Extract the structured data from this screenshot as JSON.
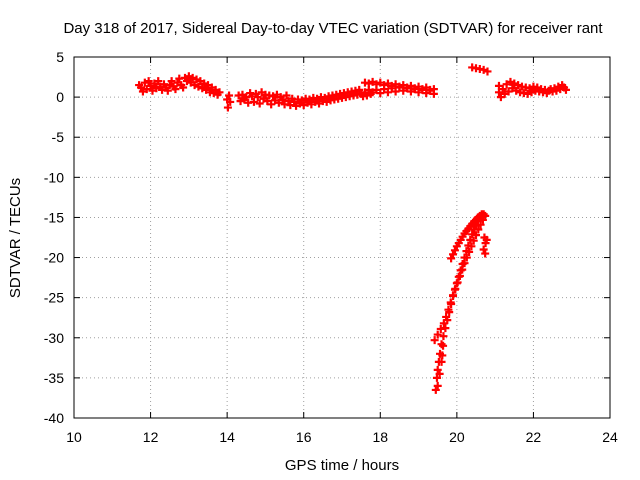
{
  "chart_data": {
    "type": "scatter",
    "title": "Day 318 of 2017, Sidereal Day-to-day VTEC variation (SDTVAR) for receiver rant",
    "xlabel": "GPS time / hours",
    "ylabel": "SDTVAR / TECUs",
    "xlim": [
      10,
      24
    ],
    "ylim": [
      -40,
      5
    ],
    "xticks": [
      10,
      12,
      14,
      16,
      18,
      20,
      22,
      24
    ],
    "yticks": [
      5,
      0,
      -5,
      -10,
      -15,
      -20,
      -25,
      -30,
      -35,
      -40
    ],
    "grid": true,
    "marker": "+",
    "point_color": "#ff0000",
    "series": [
      {
        "points": [
          [
            11.7,
            1.5
          ],
          [
            11.75,
            1.2
          ],
          [
            11.8,
            0.7
          ],
          [
            11.85,
            1.8
          ],
          [
            11.9,
            1.0
          ],
          [
            11.95,
            2.0
          ],
          [
            12.0,
            1.4
          ],
          [
            12.05,
            0.8
          ],
          [
            12.1,
            1.7
          ],
          [
            12.15,
            1.1
          ],
          [
            12.2,
            2.0
          ],
          [
            12.25,
            1.3
          ],
          [
            12.3,
            0.9
          ],
          [
            12.35,
            1.6
          ],
          [
            12.4,
            1.2
          ],
          [
            12.45,
            0.8
          ],
          [
            12.5,
            1.5
          ],
          [
            12.55,
            2.0
          ],
          [
            12.6,
            1.3
          ],
          [
            12.65,
            1.0
          ],
          [
            12.7,
            1.8
          ],
          [
            12.75,
            2.3
          ],
          [
            12.8,
            1.5
          ],
          [
            12.85,
            1.2
          ],
          [
            12.9,
            2.4
          ],
          [
            12.95,
            2.0
          ],
          [
            13.0,
            2.6
          ],
          [
            13.05,
            1.8
          ],
          [
            13.1,
            2.4
          ],
          [
            13.15,
            1.5
          ],
          [
            13.2,
            2.2
          ],
          [
            13.25,
            1.3
          ],
          [
            13.3,
            2.0
          ],
          [
            13.35,
            1.1
          ],
          [
            13.4,
            1.7
          ],
          [
            13.45,
            0.9
          ],
          [
            13.5,
            1.5
          ],
          [
            13.55,
            0.6
          ],
          [
            13.6,
            1.2
          ],
          [
            13.65,
            0.5
          ],
          [
            13.7,
            0.9
          ],
          [
            13.75,
            0.3
          ],
          [
            13.8,
            0.6
          ],
          [
            14.0,
            -0.3
          ],
          [
            14.02,
            -1.3
          ],
          [
            14.05,
            0.2
          ],
          [
            14.08,
            -0.6
          ],
          [
            14.3,
            0.2
          ],
          [
            14.35,
            -0.5
          ],
          [
            14.4,
            0.3
          ],
          [
            14.45,
            -0.3
          ],
          [
            14.5,
            0.0
          ],
          [
            14.55,
            -0.7
          ],
          [
            14.6,
            0.5
          ],
          [
            14.65,
            0.1
          ],
          [
            14.7,
            -0.6
          ],
          [
            14.75,
            0.4
          ],
          [
            14.8,
            0.0
          ],
          [
            14.85,
            -0.8
          ],
          [
            14.9,
            0.6
          ],
          [
            14.95,
            -0.2
          ],
          [
            15.0,
            0.3
          ],
          [
            15.05,
            -0.5
          ],
          [
            15.1,
            0.2
          ],
          [
            15.15,
            -0.9
          ],
          [
            15.2,
            0.1
          ],
          [
            15.25,
            -0.4
          ],
          [
            15.3,
            0.3
          ],
          [
            15.35,
            -0.7
          ],
          [
            15.4,
            0.0
          ],
          [
            15.45,
            -0.3
          ],
          [
            15.5,
            -0.9
          ],
          [
            15.55,
            0.2
          ],
          [
            15.6,
            -0.5
          ],
          [
            15.65,
            -1.0
          ],
          [
            15.7,
            -0.2
          ],
          [
            15.75,
            -0.6
          ],
          [
            15.8,
            -1.1
          ],
          [
            15.85,
            -0.3
          ],
          [
            15.9,
            -0.8
          ],
          [
            15.95,
            -0.4
          ],
          [
            16.0,
            -1.0
          ],
          [
            16.05,
            -0.2
          ],
          [
            16.1,
            -0.7
          ],
          [
            16.15,
            -0.3
          ],
          [
            16.2,
            -0.9
          ],
          [
            16.25,
            -0.1
          ],
          [
            16.3,
            -0.6
          ],
          [
            16.35,
            -0.2
          ],
          [
            16.4,
            -0.8
          ],
          [
            16.45,
            0.0
          ],
          [
            16.5,
            -0.5
          ],
          [
            16.55,
            -0.1
          ],
          [
            16.6,
            -0.6
          ],
          [
            16.65,
            0.1
          ],
          [
            16.7,
            -0.4
          ],
          [
            16.75,
            0.2
          ],
          [
            16.8,
            -0.3
          ],
          [
            16.85,
            0.3
          ],
          [
            16.9,
            -0.2
          ],
          [
            16.95,
            0.4
          ],
          [
            17.0,
            -0.1
          ],
          [
            17.05,
            0.5
          ],
          [
            17.1,
            0.0
          ],
          [
            17.15,
            0.6
          ],
          [
            17.2,
            0.1
          ],
          [
            17.25,
            0.7
          ],
          [
            17.3,
            0.2
          ],
          [
            17.35,
            0.8
          ],
          [
            17.4,
            0.3
          ],
          [
            17.45,
            0.9
          ],
          [
            17.5,
            0.4
          ],
          [
            17.55,
            0.1
          ],
          [
            17.6,
            0.6
          ],
          [
            17.65,
            0.2
          ],
          [
            17.7,
            0.9
          ],
          [
            17.75,
            0.4
          ],
          [
            17.6,
            1.8
          ],
          [
            17.7,
            1.7
          ],
          [
            17.8,
            1.9
          ],
          [
            17.9,
            1.6
          ],
          [
            18.0,
            1.8
          ],
          [
            18.1,
            1.5
          ],
          [
            18.2,
            1.7
          ],
          [
            18.3,
            1.4
          ],
          [
            18.4,
            1.6
          ],
          [
            18.5,
            1.3
          ],
          [
            18.6,
            1.5
          ],
          [
            18.7,
            1.2
          ],
          [
            18.8,
            1.4
          ],
          [
            18.9,
            1.1
          ],
          [
            19.0,
            1.3
          ],
          [
            19.1,
            1.0
          ],
          [
            19.2,
            1.2
          ],
          [
            19.3,
            0.9
          ],
          [
            19.4,
            1.0
          ],
          [
            17.8,
            0.6
          ],
          [
            17.9,
            0.9
          ],
          [
            18.0,
            0.5
          ],
          [
            18.1,
            1.0
          ],
          [
            18.2,
            0.6
          ],
          [
            18.3,
            1.1
          ],
          [
            18.4,
            0.7
          ],
          [
            18.5,
            1.2
          ],
          [
            18.6,
            0.8
          ],
          [
            18.7,
            1.1
          ],
          [
            18.8,
            0.7
          ],
          [
            18.9,
            1.0
          ],
          [
            19.0,
            0.6
          ],
          [
            19.1,
            0.9
          ],
          [
            19.2,
            0.5
          ],
          [
            19.3,
            0.8
          ],
          [
            19.4,
            0.4
          ],
          [
            20.4,
            3.7
          ],
          [
            20.5,
            3.6
          ],
          [
            20.6,
            3.5
          ],
          [
            20.7,
            3.4
          ],
          [
            20.8,
            3.2
          ],
          [
            21.1,
            1.4
          ],
          [
            21.1,
            0.6
          ],
          [
            21.15,
            0.0
          ],
          [
            21.2,
            1.0
          ],
          [
            21.25,
            0.4
          ],
          [
            21.3,
            1.6
          ],
          [
            21.35,
            0.7
          ],
          [
            21.4,
            1.9
          ],
          [
            21.45,
            1.1
          ],
          [
            21.5,
            1.7
          ],
          [
            21.55,
            0.8
          ],
          [
            21.6,
            1.5
          ],
          [
            21.65,
            0.6
          ],
          [
            21.7,
            1.3
          ],
          [
            21.75,
            0.5
          ],
          [
            21.8,
            1.2
          ],
          [
            21.85,
            0.4
          ],
          [
            21.9,
            1.1
          ],
          [
            21.95,
            0.6
          ],
          [
            22.0,
            1.3
          ],
          [
            22.05,
            0.8
          ],
          [
            22.1,
            1.2
          ],
          [
            22.15,
            0.7
          ],
          [
            22.2,
            1.0
          ],
          [
            22.25,
            0.6
          ],
          [
            22.3,
            0.9
          ],
          [
            22.35,
            0.5
          ],
          [
            22.4,
            0.8
          ],
          [
            22.45,
            1.0
          ],
          [
            22.5,
            0.7
          ],
          [
            22.55,
            1.1
          ],
          [
            22.6,
            0.8
          ],
          [
            22.65,
            1.3
          ],
          [
            22.7,
            1.0
          ],
          [
            22.75,
            1.5
          ],
          [
            22.8,
            1.2
          ],
          [
            22.85,
            0.9
          ],
          [
            19.45,
            -36.5
          ],
          [
            19.48,
            -35.0
          ],
          [
            19.5,
            -34.0
          ],
          [
            19.53,
            -33.0
          ],
          [
            19.56,
            -32.0
          ],
          [
            19.6,
            -30.8
          ],
          [
            19.65,
            -29.8
          ],
          [
            19.7,
            -28.8
          ],
          [
            19.75,
            -27.8
          ],
          [
            19.8,
            -26.8
          ],
          [
            19.85,
            -25.8
          ],
          [
            19.9,
            -24.8
          ],
          [
            19.95,
            -24.0
          ],
          [
            20.0,
            -23.2
          ],
          [
            20.05,
            -22.4
          ],
          [
            20.1,
            -21.6
          ],
          [
            20.15,
            -20.8
          ],
          [
            20.2,
            -20.0
          ],
          [
            20.25,
            -19.2
          ],
          [
            20.3,
            -18.5
          ],
          [
            20.35,
            -17.8
          ],
          [
            20.4,
            -17.1
          ],
          [
            20.45,
            -16.5
          ],
          [
            20.5,
            -16.0
          ],
          [
            20.55,
            -15.5
          ],
          [
            20.6,
            -15.1
          ],
          [
            20.65,
            -14.8
          ],
          [
            20.7,
            -14.6
          ],
          [
            19.42,
            -30.3
          ],
          [
            19.5,
            -29.6
          ],
          [
            19.58,
            -28.9
          ],
          [
            19.66,
            -28.2
          ],
          [
            19.72,
            -27.4
          ],
          [
            19.78,
            -26.5
          ],
          [
            19.84,
            -25.6
          ],
          [
            19.9,
            -24.7
          ],
          [
            19.96,
            -23.9
          ],
          [
            20.02,
            -23.1
          ],
          [
            20.08,
            -22.3
          ],
          [
            20.14,
            -21.5
          ],
          [
            20.2,
            -20.7
          ],
          [
            20.26,
            -20.0
          ],
          [
            20.32,
            -19.3
          ],
          [
            20.38,
            -18.6
          ],
          [
            20.44,
            -17.9
          ],
          [
            20.5,
            -17.2
          ],
          [
            20.56,
            -16.5
          ],
          [
            20.62,
            -15.9
          ],
          [
            20.68,
            -15.3
          ],
          [
            20.74,
            -14.8
          ],
          [
            19.85,
            -20.1
          ],
          [
            19.9,
            -19.6
          ],
          [
            19.95,
            -19.1
          ],
          [
            20.0,
            -18.6
          ],
          [
            20.05,
            -18.2
          ],
          [
            20.1,
            -17.8
          ],
          [
            20.15,
            -17.4
          ],
          [
            20.2,
            -17.0
          ],
          [
            20.25,
            -16.7
          ],
          [
            20.3,
            -16.4
          ],
          [
            20.35,
            -16.1
          ],
          [
            20.4,
            -15.8
          ],
          [
            20.45,
            -15.5
          ],
          [
            20.5,
            -15.3
          ],
          [
            20.55,
            -15.0
          ],
          [
            20.6,
            -14.8
          ],
          [
            20.65,
            -14.6
          ],
          [
            19.5,
            -36.0
          ],
          [
            19.55,
            -34.5
          ],
          [
            19.6,
            -33.0
          ],
          [
            19.62,
            -32.2
          ],
          [
            19.64,
            -31.0
          ],
          [
            20.72,
            -17.5
          ],
          [
            20.75,
            -18.2
          ],
          [
            20.78,
            -17.8
          ],
          [
            20.7,
            -19.0
          ],
          [
            20.74,
            -19.5
          ]
        ]
      }
    ]
  }
}
